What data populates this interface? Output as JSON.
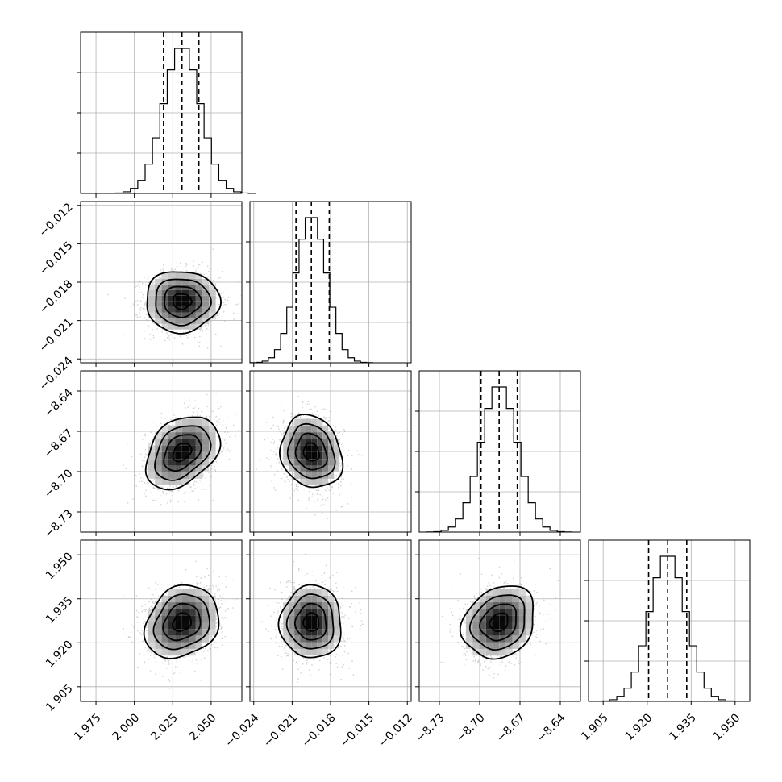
{
  "chart_data": {
    "type": "corner",
    "grid": true,
    "parameters": [
      {
        "range": [
          1.965,
          2.07
        ],
        "ticks": [
          1.975,
          2.0,
          2.025,
          2.05
        ],
        "tick_labels": [
          "1.975",
          "2.000",
          "2.025",
          "2.050"
        ],
        "mean": 2.031,
        "std": 0.012,
        "quantiles": [
          2.019,
          2.031,
          2.042
        ]
      },
      {
        "range": [
          -0.0243,
          -0.0117
        ],
        "ticks": [
          -0.024,
          -0.021,
          -0.018,
          -0.015,
          -0.012
        ],
        "tick_labels": [
          "−0.024",
          "−0.021",
          "−0.018",
          "−0.015",
          "−0.012"
        ],
        "mean": -0.0195,
        "std": 0.0012,
        "quantiles": [
          -0.0207,
          -0.0195,
          -0.0181
        ]
      },
      {
        "range": [
          -8.745,
          -8.625
        ],
        "ticks": [
          -8.73,
          -8.7,
          -8.67,
          -8.64
        ],
        "tick_labels": [
          "−8.73",
          "−8.70",
          "−8.67",
          "−8.64"
        ],
        "mean": -8.6855,
        "std": 0.0135,
        "quantiles": [
          -8.699,
          -8.6855,
          -8.672
        ]
      },
      {
        "range": [
          1.9,
          1.955
        ],
        "ticks": [
          1.905,
          1.92,
          1.935,
          1.95
        ],
        "tick_labels": [
          "1.905",
          "1.920",
          "1.935",
          "1.950"
        ],
        "mean": 1.927,
        "std": 0.0062,
        "quantiles": [
          1.9205,
          1.927,
          1.9335
        ]
      }
    ],
    "correlations": [
      [
        1.0,
        0.0,
        0.35,
        0.2
      ],
      [
        0.0,
        1.0,
        -0.15,
        0.0
      ],
      [
        0.35,
        -0.15,
        1.0,
        0.2
      ],
      [
        0.2,
        0.0,
        0.2,
        1.0
      ]
    ],
    "contour_levels_sigma": [
      0.5,
      1.0,
      1.5,
      2.0
    ],
    "quantiles": [
      0.16,
      0.5,
      0.84
    ],
    "colors": {
      "scatter": "#999999",
      "lines": "#000000",
      "grid": "#b0b0b0"
    }
  }
}
